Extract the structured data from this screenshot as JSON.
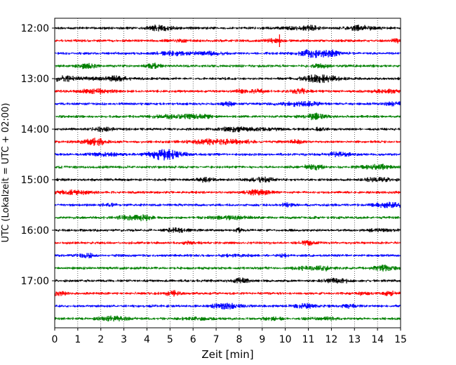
{
  "chart_data": {
    "type": "line",
    "title": "",
    "xlabel": "Zeit  [min]",
    "ylabel": "UTC (Lokalzeit = UTC + 02:00)",
    "xlim": [
      0,
      15
    ],
    "x_ticks": [
      0,
      1,
      2,
      3,
      4,
      5,
      6,
      7,
      8,
      9,
      10,
      11,
      12,
      13,
      14,
      15
    ],
    "y_tick_labels": [
      "12:00",
      "13:00",
      "14:00",
      "15:00",
      "16:00",
      "17:00"
    ],
    "grid": "vertical-dotted",
    "colors": [
      "#000000",
      "#ff0000",
      "#0000ff",
      "#008000"
    ],
    "rows": [
      {
        "start": "12:00",
        "color": "#000000"
      },
      {
        "start": "12:15",
        "color": "#ff0000",
        "event_minute": 9.75
      },
      {
        "start": "12:30",
        "color": "#0000ff"
      },
      {
        "start": "12:45",
        "color": "#008000"
      },
      {
        "start": "13:00",
        "color": "#000000"
      },
      {
        "start": "13:15",
        "color": "#ff0000"
      },
      {
        "start": "13:30",
        "color": "#0000ff"
      },
      {
        "start": "13:45",
        "color": "#008000"
      },
      {
        "start": "14:00",
        "color": "#000000"
      },
      {
        "start": "14:15",
        "color": "#ff0000"
      },
      {
        "start": "14:30",
        "color": "#0000ff"
      },
      {
        "start": "14:45",
        "color": "#008000"
      },
      {
        "start": "15:00",
        "color": "#000000"
      },
      {
        "start": "15:15",
        "color": "#ff0000"
      },
      {
        "start": "15:30",
        "color": "#0000ff"
      },
      {
        "start": "15:45",
        "color": "#008000"
      },
      {
        "start": "16:00",
        "color": "#000000"
      },
      {
        "start": "16:15",
        "color": "#ff0000"
      },
      {
        "start": "16:30",
        "color": "#0000ff"
      },
      {
        "start": "16:45",
        "color": "#008000"
      },
      {
        "start": "17:00",
        "color": "#000000"
      },
      {
        "start": "17:15",
        "color": "#ff0000"
      },
      {
        "start": "17:30",
        "color": "#0000ff"
      },
      {
        "start": "17:45",
        "color": "#008000"
      }
    ]
  }
}
